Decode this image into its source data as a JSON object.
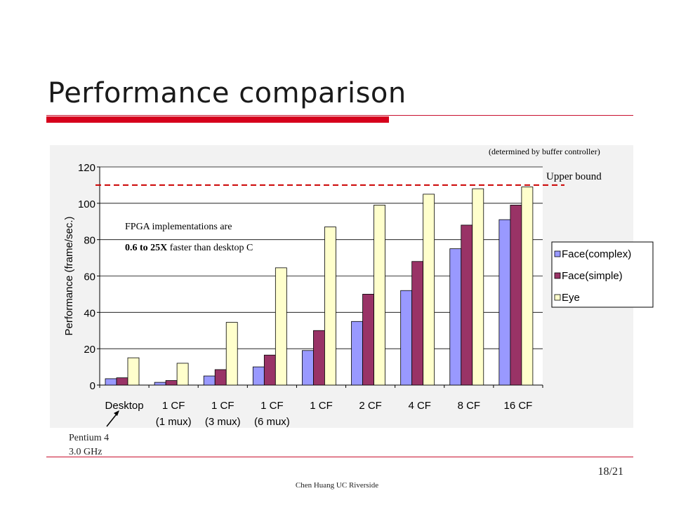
{
  "slide": {
    "title": "Performance comparison",
    "footer": "Chen Huang  UC  Riverside",
    "page": "18/21"
  },
  "chart_data": {
    "type": "bar",
    "ylabel": "Performance (frame/sec.)",
    "ylim": [
      0,
      120
    ],
    "yticks": [
      0,
      20,
      40,
      60,
      80,
      100,
      120
    ],
    "categories": [
      {
        "line1": "Desktop",
        "line2": ""
      },
      {
        "line1": "1 CF",
        "line2": "(1 mux)"
      },
      {
        "line1": "1 CF",
        "line2": "(3 mux)"
      },
      {
        "line1": "1 CF",
        "line2": "(6 mux)"
      },
      {
        "line1": "1 CF",
        "line2": ""
      },
      {
        "line1": "2 CF",
        "line2": ""
      },
      {
        "line1": "4 CF",
        "line2": ""
      },
      {
        "line1": "8 CF",
        "line2": ""
      },
      {
        "line1": "16 CF",
        "line2": ""
      }
    ],
    "series": [
      {
        "name": "Face(complex)",
        "color": "#9999ff",
        "values": [
          3.5,
          1.5,
          5,
          10,
          19,
          35,
          52,
          75,
          91
        ]
      },
      {
        "name": "Face(simple)",
        "color": "#993366",
        "values": [
          4,
          2.5,
          8.5,
          16.5,
          30,
          50,
          68,
          88,
          99
        ]
      },
      {
        "name": "Eye",
        "color": "#ffffcc",
        "values": [
          15,
          12,
          34.5,
          64.5,
          87,
          99,
          105,
          108,
          109
        ]
      }
    ],
    "upper_bound": {
      "value": 110,
      "label": "Upper bound",
      "note": "(determined by buffer controller)",
      "color": "#cc0000"
    },
    "annotation": {
      "line1": "FPGA implementations are",
      "line2_bold": "0.6 to 25X",
      "line2_rest": " faster than desktop C"
    },
    "callout": {
      "line1": "Pentium 4",
      "line2": "3.0 GHz"
    },
    "legend_position": "right",
    "grid": true
  }
}
